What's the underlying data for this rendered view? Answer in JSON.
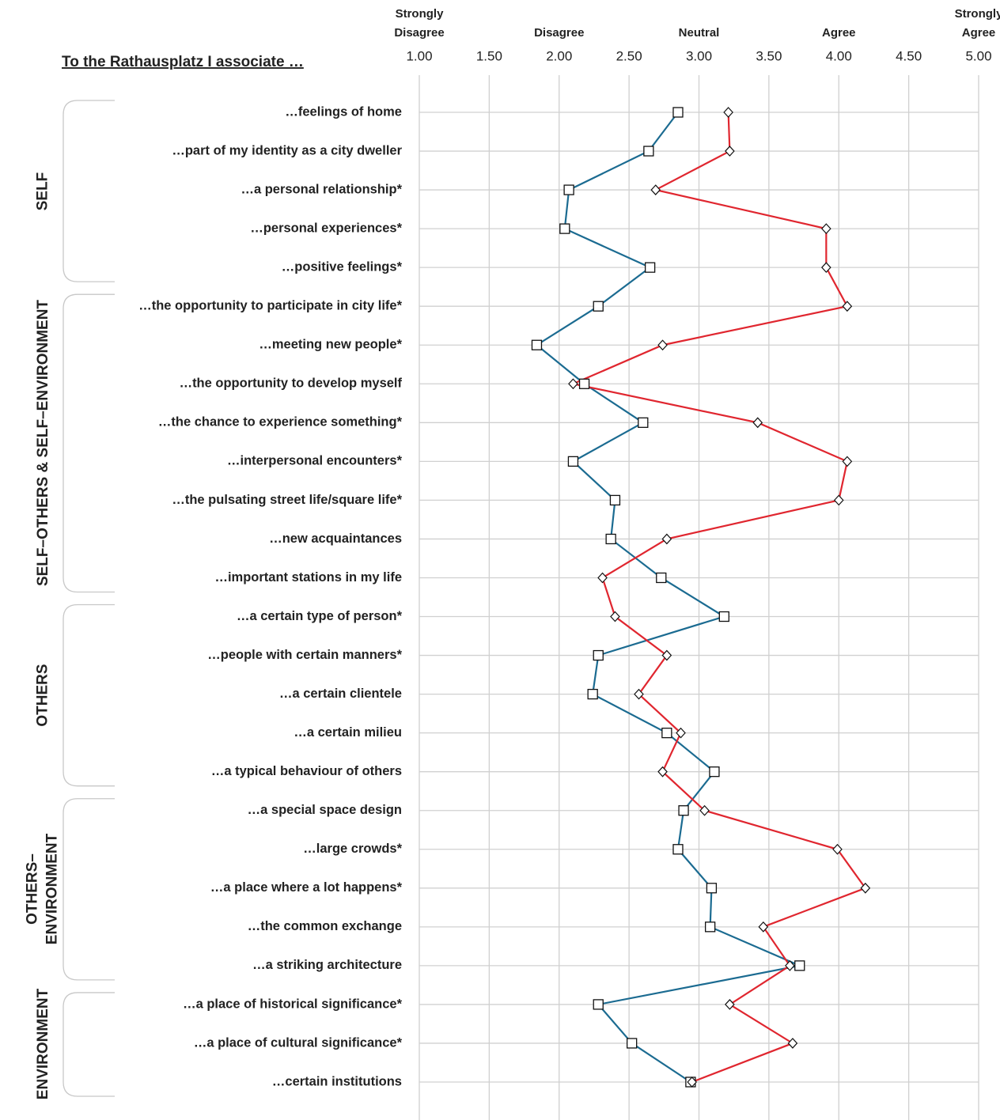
{
  "chart_data": {
    "type": "profile",
    "title": "To the Rathausplatz I associate …",
    "categories": [
      "…feelings of home",
      "…part of my identity as a city dweller",
      "…a personal relationship*",
      "…personal experiences*",
      "…positive feelings*",
      "…the opportunity to participate in city life*",
      "…meeting new people*",
      "…the opportunity to develop myself",
      "…the chance to experience something*",
      "…interpersonal encounters*",
      "…the pulsating street life/square life*",
      "…new acquaintances",
      "…important stations in my life",
      "…a certain type of person*",
      "…people with certain manners*",
      "…a certain clientele",
      "…a certain milieu",
      "…a typical behaviour of others",
      "…a special space design",
      "…large crowds*",
      "…a place where a lot happens*",
      "…the common exchange",
      "…a striking architecture",
      "…a place of historical significance*",
      "…a place of cultural significance*",
      "…certain institutions"
    ],
    "groups": [
      {
        "label": "SELF",
        "rows": 5
      },
      {
        "label": "SELF–OTHERS & SELF–ENVIRONMENT",
        "rows": 8
      },
      {
        "label": "OTHERS",
        "rows": 5
      },
      {
        "label": "OTHERS– ENVIRONMENT",
        "rows": 5
      },
      {
        "label": "ENVIRONMENT",
        "rows": 3
      }
    ],
    "series": [
      {
        "color": "#1b6b91",
        "marker": "square",
        "values": [
          2.85,
          2.64,
          2.07,
          2.04,
          2.65,
          2.28,
          1.84,
          2.18,
          2.6,
          2.1,
          2.4,
          2.37,
          2.73,
          3.18,
          2.28,
          2.24,
          2.77,
          3.11,
          2.89,
          2.85,
          3.09,
          3.08,
          3.72,
          2.28,
          2.52,
          2.94
        ]
      },
      {
        "color": "#e0262f",
        "marker": "diamond",
        "values": [
          3.21,
          3.22,
          2.69,
          3.91,
          3.91,
          4.06,
          2.74,
          2.1,
          3.42,
          4.06,
          4.0,
          2.77,
          2.31,
          2.4,
          2.77,
          2.57,
          2.87,
          2.74,
          3.04,
          3.99,
          4.19,
          3.46,
          3.65,
          3.22,
          3.67,
          2.95
        ]
      }
    ],
    "xlim": [
      1,
      5
    ],
    "xticks": [
      {
        "value": 1,
        "label": "1.00"
      },
      {
        "value": 1.5,
        "label": "1.50"
      },
      {
        "value": 2,
        "label": "2.00"
      },
      {
        "value": 2.5,
        "label": "2.50"
      },
      {
        "value": 3,
        "label": "3.00"
      },
      {
        "value": 3.5,
        "label": "3.50"
      },
      {
        "value": 4,
        "label": "4.00"
      },
      {
        "value": 4.5,
        "label": "4.50"
      },
      {
        "value": 5,
        "label": "5.00"
      }
    ],
    "scale_labels": [
      {
        "value": 1,
        "label": "Strongly Disagree"
      },
      {
        "value": 2,
        "label": "Disagree"
      },
      {
        "value": 3,
        "label": "Neutral"
      },
      {
        "value": 4,
        "label": "Agree"
      },
      {
        "value": 5,
        "label": "Strongly Agree"
      }
    ],
    "grid": true
  }
}
